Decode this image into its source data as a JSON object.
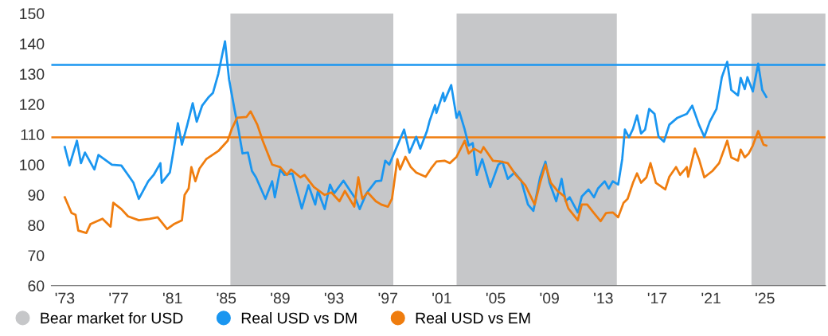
{
  "chart_data": {
    "type": "line",
    "xlim": [
      1972,
      2029.5
    ],
    "ylim": [
      60,
      150
    ],
    "xticks": [
      {
        "value": 1973,
        "label": "'73"
      },
      {
        "value": 1977,
        "label": "'77"
      },
      {
        "value": 1981,
        "label": "'81"
      },
      {
        "value": 1985,
        "label": "'85"
      },
      {
        "value": 1989,
        "label": "'89"
      },
      {
        "value": 1993,
        "label": "'93"
      },
      {
        "value": 1997,
        "label": "'97"
      },
      {
        "value": 2001,
        "label": "'01"
      },
      {
        "value": 2005,
        "label": "'05"
      },
      {
        "value": 2009,
        "label": "'09"
      },
      {
        "value": 2013,
        "label": "'13"
      },
      {
        "value": 2017,
        "label": "'17"
      },
      {
        "value": 2021,
        "label": "'21"
      },
      {
        "value": 2025,
        "label": "'25"
      }
    ],
    "yticks": [
      60,
      70,
      80,
      90,
      100,
      110,
      120,
      130,
      140,
      150
    ],
    "grid": false,
    "legend": "bottom",
    "marker": "none",
    "line_style": "solid",
    "bands": [
      {
        "axis": "x",
        "from": 1985.3,
        "to": 1997.4,
        "label": "Bear market for USD",
        "color": "#c6c7c9"
      },
      {
        "axis": "x",
        "from": 2002.1,
        "to": 2014.0,
        "color": "#c6c7c9"
      },
      {
        "axis": "x",
        "from": 2024.0,
        "to": 2029.5,
        "color": "#c6c7c9"
      }
    ],
    "ref_lines": [
      {
        "axis": "y",
        "value": 133,
        "color": "#1a96f0",
        "line_style": "solid"
      },
      {
        "axis": "y",
        "value": 109,
        "color": "#ef7d0f",
        "line_style": "solid"
      }
    ],
    "series": [
      {
        "name": "Real USD vs DM",
        "color": "#1a96f0",
        "x": [
          1973.0,
          1973.35,
          1973.9,
          1974.2,
          1974.5,
          1975.2,
          1975.5,
          1976.5,
          1977.2,
          1977.7,
          1978.1,
          1978.5,
          1979.2,
          1979.6,
          1980.1,
          1980.2,
          1980.8,
          1981.1,
          1981.4,
          1981.7,
          1982.1,
          1982.5,
          1982.8,
          1983.2,
          1983.7,
          1984.0,
          1984.4,
          1984.9,
          1985.2,
          1985.6,
          1985.9,
          1986.2,
          1986.6,
          1986.9,
          1987.2,
          1987.9,
          1988.4,
          1988.6,
          1989.0,
          1989.3,
          1989.9,
          1990.6,
          1991.1,
          1991.6,
          1991.8,
          1992.3,
          1992.7,
          1993.0,
          1993.7,
          1994.2,
          1994.6,
          1994.9,
          1995.4,
          1996.1,
          1996.5,
          1996.8,
          1997.1,
          1997.7,
          1998.2,
          1998.6,
          1999.1,
          1999.4,
          1999.9,
          2000.1,
          2000.5,
          2000.6,
          2001.1,
          2001.2,
          2001.7,
          2002.1,
          2002.3,
          2002.7,
          2003.0,
          2003.3,
          2003.6,
          2004.0,
          2004.6,
          2005.2,
          2005.5,
          2005.9,
          2006.4,
          2006.9,
          2007.4,
          2007.8,
          2008.3,
          2008.7,
          2009.0,
          2009.5,
          2009.9,
          2010.2,
          2010.5,
          2011.1,
          2011.4,
          2011.9,
          2012.3,
          2012.6,
          2013.1,
          2013.4,
          2013.7,
          2014.1,
          2014.4,
          2014.6,
          2014.9,
          2015.2,
          2015.5,
          2015.8,
          2016.1,
          2016.4,
          2016.8,
          2017.1,
          2017.5,
          2017.9,
          2018.5,
          2019.2,
          2019.6,
          2020.1,
          2020.5,
          2020.9,
          2021.4,
          2021.8,
          2022.2,
          2022.5,
          2023.0,
          2023.2,
          2023.5,
          2023.7,
          2024.1,
          2024.5,
          2024.8,
          2025.1
        ],
        "values": [
          105.8,
          99.7,
          107.9,
          100.5,
          104,
          98.4,
          103.2,
          100,
          99.7,
          96.6,
          94,
          88.7,
          94.5,
          96.6,
          100.5,
          94,
          97.4,
          105.3,
          113.7,
          106.6,
          113.2,
          120.3,
          114.2,
          119.5,
          122.4,
          123.7,
          130,
          140.8,
          128.2,
          118.4,
          111.6,
          103.7,
          104,
          97.9,
          95.8,
          88.7,
          94.5,
          89.2,
          98.4,
          96.6,
          97.1,
          85.5,
          93.2,
          86.8,
          91.3,
          85.3,
          93.4,
          90.5,
          94.7,
          91.3,
          88.7,
          85.3,
          90.5,
          94.5,
          94.7,
          101.3,
          100,
          106.3,
          111.6,
          104,
          109.2,
          105.3,
          111.1,
          114.5,
          119.7,
          117.1,
          123.7,
          121,
          126.3,
          115.5,
          117.6,
          111.6,
          106.3,
          107.1,
          96.6,
          101.8,
          92.6,
          100,
          101,
          95.3,
          97.4,
          94.7,
          86.8,
          84.7,
          95.8,
          101,
          94,
          87.9,
          95.3,
          87.9,
          89.2,
          84.2,
          89.5,
          91.8,
          89.2,
          92.1,
          94.5,
          92.1,
          94.5,
          93.4,
          101.8,
          111.6,
          109,
          111.8,
          116.3,
          110.3,
          111.6,
          118.4,
          116.8,
          109.2,
          107.6,
          113.2,
          115.5,
          116.8,
          119.5,
          113.2,
          109.2,
          114.2,
          118.4,
          128.9,
          134,
          124.7,
          122.9,
          128.7,
          125,
          128.9,
          124.2,
          133.4,
          124.7,
          122.4
        ]
      },
      {
        "name": "Real USD vs EM",
        "color": "#ef7d0f",
        "x": [
          1973.0,
          1973.5,
          1973.8,
          1974.0,
          1974.6,
          1974.9,
          1975.8,
          1976.4,
          1976.6,
          1977.2,
          1977.7,
          1978.5,
          1979.3,
          1979.9,
          1980.6,
          1981.1,
          1981.7,
          1981.9,
          1982.2,
          1982.4,
          1982.7,
          1983.0,
          1983.5,
          1984.4,
          1985.1,
          1985.4,
          1985.8,
          1986.5,
          1986.8,
          1987.3,
          1987.7,
          1988.4,
          1989.0,
          1989.5,
          1989.8,
          1990.5,
          1990.8,
          1991.5,
          1992.3,
          1992.8,
          1993.4,
          1993.8,
          1994.5,
          1994.8,
          1995.1,
          1995.5,
          1996.1,
          1996.5,
          1997.0,
          1997.3,
          1997.7,
          1997.9,
          1998.3,
          1998.7,
          1999.1,
          1999.8,
          2000.2,
          2000.6,
          2001.2,
          2001.6,
          2002.1,
          2002.7,
          2003.0,
          2003.4,
          2003.9,
          2004.1,
          2004.8,
          2005.4,
          2005.9,
          2006.5,
          2007.2,
          2007.9,
          2008.3,
          2008.7,
          2009.1,
          2009.6,
          2010.1,
          2010.4,
          2011.1,
          2011.4,
          2011.8,
          2012.3,
          2012.8,
          2013.2,
          2013.7,
          2014.1,
          2014.5,
          2014.8,
          2015.2,
          2015.5,
          2015.8,
          2016.2,
          2016.5,
          2016.9,
          2017.6,
          2017.9,
          2018.4,
          2018.7,
          2019.2,
          2019.3,
          2019.8,
          2020.1,
          2020.5,
          2021.1,
          2021.6,
          2022.2,
          2022.5,
          2023.0,
          2023.2,
          2023.5,
          2023.8,
          2024.1,
          2024.5,
          2024.9,
          2025.1
        ],
        "values": [
          89.2,
          84,
          83.4,
          78.2,
          77.4,
          80.3,
          82.1,
          79.5,
          87.4,
          85.3,
          82.9,
          81.6,
          82.1,
          82.6,
          78.7,
          80.3,
          81.6,
          90,
          92.1,
          99.2,
          94.5,
          98.7,
          101.8,
          104.5,
          107.9,
          111.8,
          115.5,
          115.8,
          117.6,
          113.2,
          107.9,
          100,
          99.2,
          96.6,
          98.4,
          95.8,
          96.6,
          92.6,
          90,
          90.8,
          87.9,
          91.3,
          86.1,
          95.8,
          88.7,
          90.8,
          87.9,
          86.8,
          86.1,
          88.7,
          101.8,
          98.4,
          102.6,
          99.2,
          97.4,
          96,
          98.7,
          101,
          101.3,
          100.5,
          102.6,
          107.9,
          103.7,
          105.3,
          104,
          105.8,
          101.3,
          101,
          100.5,
          96.6,
          93.2,
          86.8,
          94,
          100,
          94,
          91.3,
          89.5,
          85.5,
          81.6,
          86.8,
          86.8,
          84,
          81.3,
          84,
          84.2,
          82.6,
          87.4,
          88.7,
          94,
          97.1,
          94,
          95.8,
          100.5,
          94,
          91.8,
          96,
          99.2,
          96.6,
          99.2,
          96,
          105.3,
          101.8,
          95.8,
          97.9,
          100.5,
          107.9,
          102.4,
          101.3,
          105,
          102.4,
          103.7,
          106.3,
          111.1,
          106.6,
          106.3
        ]
      }
    ]
  }
}
